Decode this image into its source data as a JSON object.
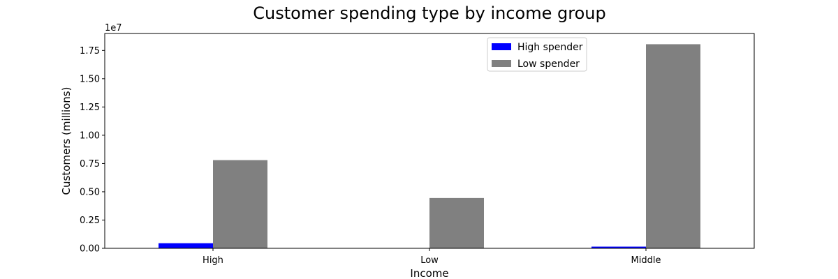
{
  "chart_data": {
    "type": "bar",
    "title": "Customer spending type by income group",
    "xlabel": "Income",
    "ylabel": "Customers (millions)",
    "offset_label": "1e7",
    "categories": [
      "High",
      "Low",
      "Middle"
    ],
    "series": [
      {
        "name": "High spender",
        "color": "#0000ff",
        "values": [
          450000,
          0,
          150000
        ]
      },
      {
        "name": "Low spender",
        "color": "#808080",
        "values": [
          7800000,
          4450000,
          18050000
        ]
      }
    ],
    "ylim": [
      0,
      19000000
    ],
    "yticks": [
      0,
      2500000,
      5000000,
      7500000,
      10000000,
      12500000,
      15000000,
      17500000
    ],
    "ytick_labels": [
      "0.00",
      "0.25",
      "0.50",
      "0.75",
      "1.00",
      "1.25",
      "1.50",
      "1.75"
    ],
    "legend_position": "top-center",
    "grid": false
  }
}
